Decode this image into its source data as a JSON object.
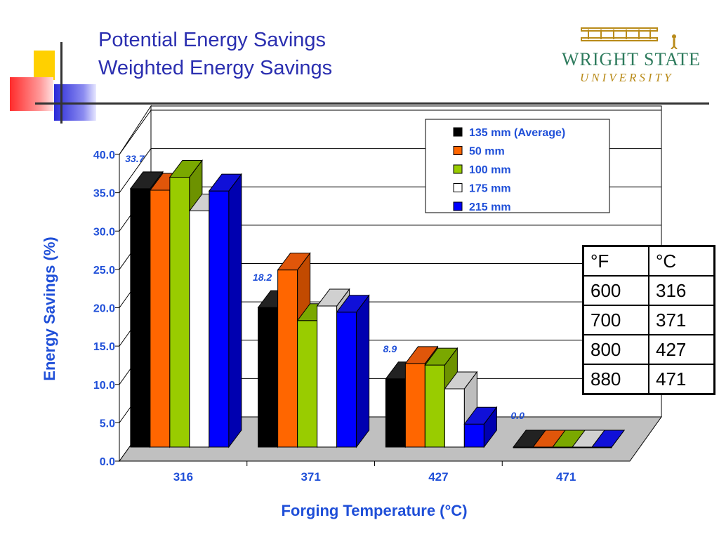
{
  "slide": {
    "title_line1": "Potential Energy Savings",
    "title_line2": "Weighted Energy Savings",
    "logo_line1": "WRIGHT STATE",
    "logo_line2": "UNIVERSITY"
  },
  "conversion_table": {
    "headers": [
      "°F",
      "°C"
    ],
    "rows": [
      [
        "600",
        "316"
      ],
      [
        "700",
        "371"
      ],
      [
        "800",
        "427"
      ],
      [
        "880",
        "471"
      ]
    ]
  },
  "chart_data": {
    "type": "bar",
    "xlabel": "Forging Temperature (°C)",
    "ylabel": "Energy Savings (%)",
    "categories": [
      "316",
      "371",
      "427",
      "471"
    ],
    "ylim": [
      0,
      40
    ],
    "yticks": [
      "0.0",
      "5.0",
      "10.0",
      "15.0",
      "20.0",
      "25.0",
      "30.0",
      "35.0",
      "40.0"
    ],
    "series": [
      {
        "name": "135 mm (Average)",
        "color": "#000000",
        "values": [
          33.7,
          18.2,
          8.9,
          0.0
        ]
      },
      {
        "name": "50 mm",
        "color": "#ff6600",
        "values": [
          33.5,
          23.1,
          10.9,
          0.0
        ]
      },
      {
        "name": "100 mm",
        "color": "#99cc00",
        "values": [
          35.2,
          16.5,
          10.7,
          0.0
        ]
      },
      {
        "name": "175 mm",
        "color": "#ffffff",
        "values": [
          30.8,
          18.4,
          7.6,
          0.0
        ]
      },
      {
        "name": "215 mm",
        "color": "#0000ff",
        "values": [
          33.4,
          17.6,
          3.0,
          0.0
        ]
      }
    ],
    "data_labels": [
      "33.7",
      "18.2",
      "8.9",
      "0.0"
    ],
    "legend_position": "top-right",
    "grid": true
  }
}
